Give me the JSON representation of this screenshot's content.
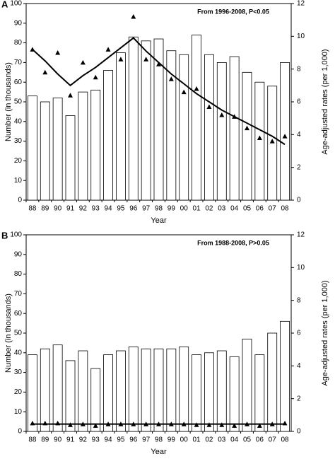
{
  "chart_data": [
    {
      "type": "bar",
      "label": "A",
      "annotation": "From 1996-2008, P<0.05",
      "ylabel": "Number (in thousands)",
      "y2label": "Age-adjusted rates (per 1,000)",
      "xlabel": "Year",
      "categories": [
        "88",
        "89",
        "90",
        "91",
        "92",
        "93",
        "94",
        "95",
        "96",
        "97",
        "98",
        "99",
        "00",
        "01",
        "02",
        "03",
        "04",
        "05",
        "06",
        "07",
        "08"
      ],
      "ylim": [
        0,
        100
      ],
      "yticks": [
        0,
        10,
        20,
        30,
        40,
        50,
        60,
        70,
        80,
        90,
        100
      ],
      "y2lim": [
        0,
        12
      ],
      "y2ticks": [
        0,
        2,
        4,
        6,
        8,
        10,
        12
      ],
      "grid": false,
      "series": [
        {
          "type": "bar",
          "color": "#000000",
          "values": [
            53,
            50,
            52,
            43,
            55,
            56,
            66,
            75,
            83,
            81,
            82,
            76,
            74,
            84,
            74,
            70,
            73,
            65,
            60,
            58,
            70
          ]
        },
        {
          "type": "scatter",
          "axis": "y2",
          "color": "#000000",
          "values": [
            9.2,
            7.8,
            9.0,
            6.4,
            8.4,
            7.5,
            9.2,
            8.6,
            11.2,
            8.6,
            8.3,
            7.4,
            6.6,
            6.8,
            5.7,
            5.2,
            5.1,
            4.4,
            3.8,
            3.6,
            3.9
          ]
        },
        {
          "type": "line",
          "axis": "y2",
          "color": "#000000",
          "values": [
            9.2,
            8.5,
            7.7,
            7.0,
            7.6,
            8.1,
            8.7,
            9.3,
            9.9,
            9.1,
            8.4,
            7.7,
            7.1,
            6.5,
            6.0,
            5.5,
            5.1,
            4.7,
            4.3,
            3.9,
            3.4
          ]
        }
      ]
    },
    {
      "type": "bar",
      "label": "B",
      "annotation": "From 1988-2008, P>0.05",
      "ylabel": "Number (in thousands)",
      "y2label": "Age-adjusted rates (per 1,000)",
      "xlabel": "Year",
      "categories": [
        "88",
        "89",
        "90",
        "91",
        "92",
        "93",
        "94",
        "95",
        "96",
        "97",
        "98",
        "99",
        "00",
        "01",
        "02",
        "03",
        "04",
        "05",
        "06",
        "07",
        "08"
      ],
      "ylim": [
        0,
        100
      ],
      "yticks": [
        0,
        10,
        20,
        30,
        40,
        50,
        60,
        70,
        80,
        90,
        100
      ],
      "y2lim": [
        0,
        12
      ],
      "y2ticks": [
        0,
        2,
        4,
        6,
        8,
        10,
        12
      ],
      "grid": false,
      "series": [
        {
          "type": "bar",
          "color": "#000000",
          "values": [
            39,
            42,
            44,
            36,
            41,
            32,
            39,
            41,
            43,
            42,
            42,
            42,
            43,
            39,
            40,
            41,
            38,
            47,
            39,
            50,
            56
          ]
        },
        {
          "type": "scatter",
          "axis": "y2",
          "color": "#000000",
          "values": [
            0.5,
            0.5,
            0.5,
            0.4,
            0.45,
            0.35,
            0.45,
            0.45,
            0.45,
            0.45,
            0.45,
            0.45,
            0.45,
            0.4,
            0.4,
            0.4,
            0.35,
            0.45,
            0.35,
            0.45,
            0.5
          ]
        },
        {
          "type": "line",
          "axis": "y2",
          "color": "#000000",
          "values": [
            0.45,
            0.45,
            0.45,
            0.45,
            0.45,
            0.45,
            0.45,
            0.45,
            0.45,
            0.45,
            0.45,
            0.45,
            0.45,
            0.45,
            0.45,
            0.45,
            0.45,
            0.45,
            0.45,
            0.45,
            0.45
          ]
        }
      ]
    }
  ]
}
